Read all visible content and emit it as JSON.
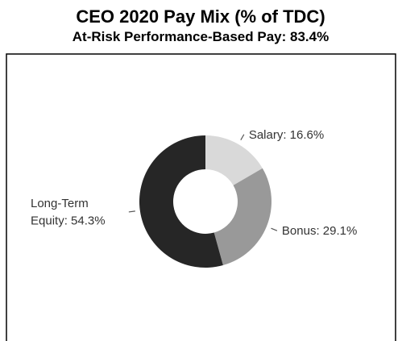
{
  "chart_data": {
    "type": "donut",
    "title": "CEO 2020 Pay Mix (% of TDC)",
    "subtitle": "At-Risk Performance-Based Pay: 83.4%",
    "values": [
      16.6,
      29.1,
      54.3
    ],
    "value_labels": [
      "Salary: 16.6%",
      "Bonus: 29.1%",
      "Long-Term\nEquity: 54.3%"
    ],
    "colors": [
      "#d9d9d9",
      "#999999",
      "#262626"
    ]
  }
}
